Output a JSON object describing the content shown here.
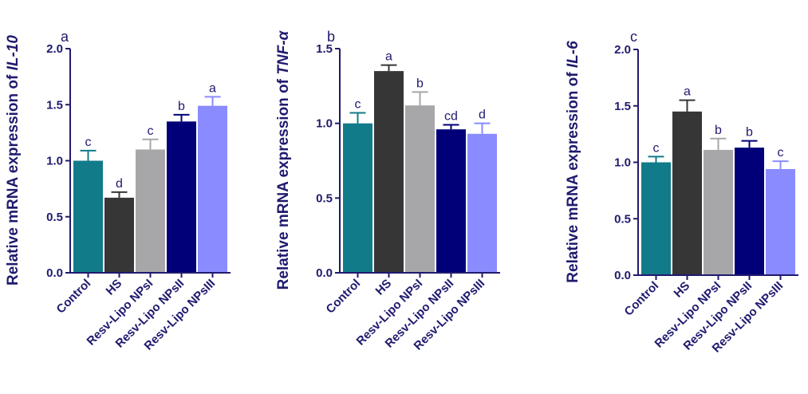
{
  "colors": {
    "axis": "#1f1a6e",
    "label_text": "#1f1a6e",
    "letter_text": "#1f1a6e",
    "error_bar": "#6b6b6b",
    "bars": [
      "#127b8a",
      "#363636",
      "#a7a7a9",
      "#010079",
      "#8a8bff"
    ]
  },
  "chart_data": [
    {
      "type": "bar",
      "panel_label": "a",
      "ylabel_prefix": "Relative mRNA expression of ",
      "ylabel_gene": "IL-10",
      "categories": [
        "Control",
        "HS",
        "Resv-Lipo NPsI",
        "Resv-Lipo NPsII",
        "Resv-Lipo NPsIII"
      ],
      "values": [
        1.0,
        0.67,
        1.1,
        1.35,
        1.49
      ],
      "errors": [
        0.09,
        0.05,
        0.09,
        0.06,
        0.08
      ],
      "significance": [
        "c",
        "d",
        "c",
        "b",
        "a"
      ],
      "ylim": [
        0,
        2.0
      ],
      "yticks": [
        0.0,
        0.5,
        1.0,
        1.5,
        2.0
      ],
      "ytick_labels": [
        "0.0",
        "0.5",
        "1.0",
        "1.5",
        "2.0"
      ]
    },
    {
      "type": "bar",
      "panel_label": "b",
      "ylabel_prefix": "Relative mRNA expression of ",
      "ylabel_gene": "TNF-α",
      "categories": [
        "Control",
        "HS",
        "Resv-Lipo NPsI",
        "Resv-Lipo NPsII",
        "Resv-Lipo NPsIII"
      ],
      "values": [
        1.0,
        1.35,
        1.12,
        0.96,
        0.93
      ],
      "errors": [
        0.07,
        0.04,
        0.09,
        0.03,
        0.07
      ],
      "significance": [
        "c",
        "a",
        "b",
        "cd",
        "d"
      ],
      "ylim": [
        0,
        1.5
      ],
      "yticks": [
        0.0,
        0.5,
        1.0,
        1.5
      ],
      "ytick_labels": [
        "0.0",
        "0.5",
        "1.0",
        "1.5"
      ]
    },
    {
      "type": "bar",
      "panel_label": "c",
      "ylabel_prefix": "Relative mRNA expression of ",
      "ylabel_gene": "IL-6",
      "categories": [
        "Control",
        "HS",
        "Resv-Lipo NPsI",
        "Resv-Lipo NPsII",
        "Resv-Lipo NPsIII"
      ],
      "values": [
        1.0,
        1.45,
        1.11,
        1.13,
        0.94
      ],
      "errors": [
        0.05,
        0.1,
        0.1,
        0.06,
        0.07
      ],
      "significance": [
        "c",
        "a",
        "b",
        "b",
        "c"
      ],
      "ylim": [
        0,
        2.0
      ],
      "yticks": [
        0.0,
        0.5,
        1.0,
        1.5,
        2.0
      ],
      "ytick_labels": [
        "0.0",
        "0.5",
        "1.0",
        "1.5",
        "2.0"
      ]
    }
  ]
}
